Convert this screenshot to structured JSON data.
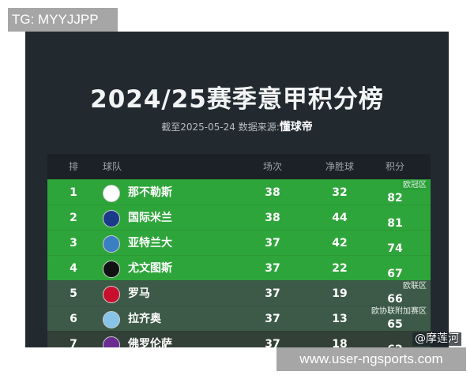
{
  "watermark_top": "TG: MYYJJPP",
  "watermark_bottom": "www.user-ngsports.com",
  "watermark_author": "@摩莲河",
  "title": "2024/25赛季意甲积分榜",
  "subtitle_prefix": "截至2025-05-24 数据来源:",
  "subtitle_source": "懂球帝",
  "headers": {
    "rank": "排名",
    "team": "球队",
    "played": "场次",
    "gd": "净胜球",
    "points": "积分"
  },
  "zones": {
    "ucl": "欧冠区",
    "uel": "欧联区",
    "uecl": "欧协联附加赛区"
  },
  "colors": {
    "ucl": "#2ea53a",
    "uel": "#3d5a48",
    "background": "#222a30"
  },
  "rows": [
    {
      "rank": "1",
      "team": "那不勒斯",
      "played": "38",
      "gd": "32",
      "points": "82",
      "logo": "napoli-badge",
      "color": "#ffffff"
    },
    {
      "rank": "2",
      "team": "国际米兰",
      "played": "38",
      "gd": "44",
      "points": "81",
      "logo": "inter-badge",
      "color": "#1a3a8a"
    },
    {
      "rank": "3",
      "team": "亚特兰大",
      "played": "37",
      "gd": "42",
      "points": "74",
      "logo": "atalanta-badge",
      "color": "#3a7fc4"
    },
    {
      "rank": "4",
      "team": "尤文图斯",
      "played": "37",
      "gd": "22",
      "points": "67",
      "logo": "juventus-badge",
      "color": "#111111"
    },
    {
      "rank": "5",
      "team": "罗马",
      "played": "37",
      "gd": "19",
      "points": "66",
      "logo": "roma-badge",
      "color": "#c8102e"
    },
    {
      "rank": "6",
      "team": "拉齐奥",
      "played": "37",
      "gd": "13",
      "points": "65",
      "logo": "lazio-badge",
      "color": "#87c4e8"
    },
    {
      "rank": "7",
      "team": "佛罗伦萨",
      "played": "37",
      "gd": "18",
      "points": "62",
      "logo": "fiorentina-badge",
      "color": "#6a2c91"
    }
  ]
}
